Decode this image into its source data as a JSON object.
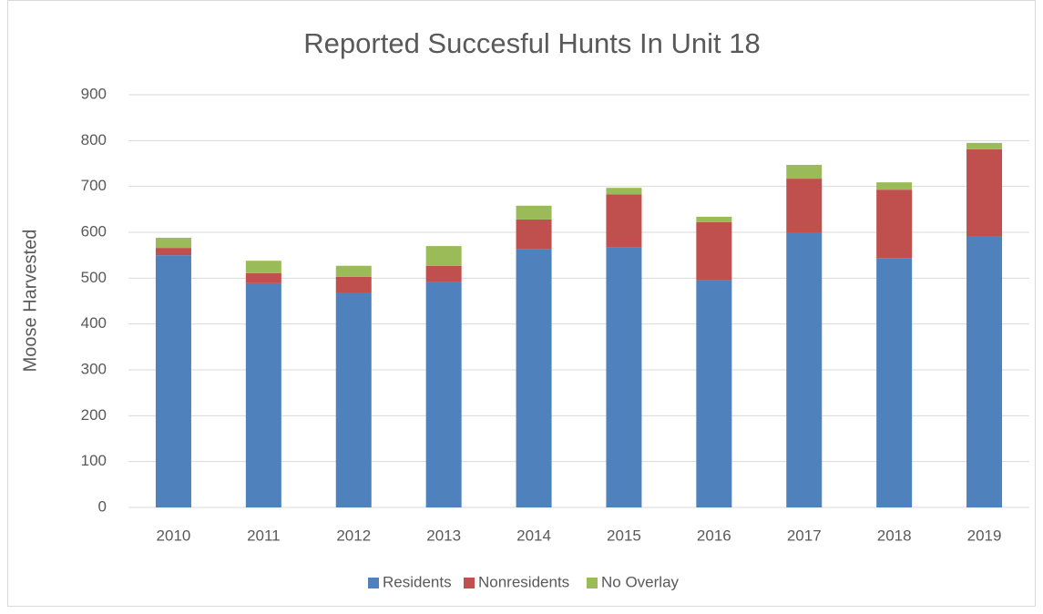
{
  "chart_data": {
    "type": "stacked_bar",
    "title": "Reported Succesful Hunts In Unit 18",
    "ylabel": "Moose Harvested",
    "categories": [
      "2010",
      "2011",
      "2012",
      "2013",
      "2014",
      "2015",
      "2016",
      "2017",
      "2018",
      "2019"
    ],
    "series": [
      {
        "name": "Residents",
        "color": "#4f81bd",
        "values": [
          550,
          489,
          467,
          491,
          564,
          568,
          495,
          600,
          544,
          592
        ]
      },
      {
        "name": "Nonresidents",
        "color": "#c0504d",
        "values": [
          16,
          22,
          36,
          36,
          64,
          115,
          127,
          117,
          149,
          189
        ]
      },
      {
        "name": "No Overlay",
        "color": "#9bbb59",
        "values": [
          22,
          27,
          24,
          43,
          30,
          14,
          12,
          30,
          16,
          14
        ]
      }
    ],
    "ylim": [
      0,
      900
    ],
    "yticks": [
      0,
      100,
      200,
      300,
      400,
      500,
      600,
      700,
      800,
      900
    ],
    "grid": true,
    "legend": "bottom"
  }
}
